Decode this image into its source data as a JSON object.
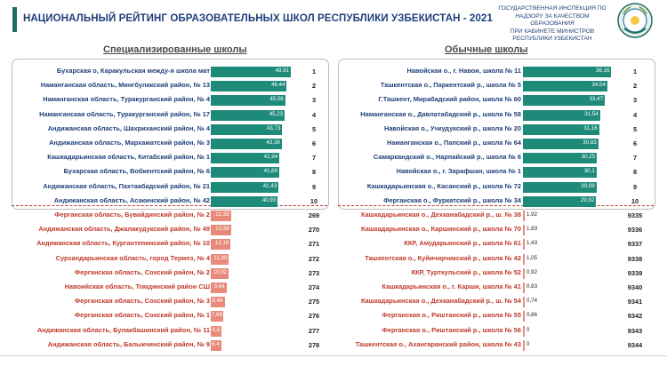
{
  "header": {
    "title": "НАЦИОНАЛЬНЫЙ РЕЙТИНГ ОБРАЗОВАТЕЛЬНЫХ ШКОЛ РЕСПУБЛИКИ УЗБЕКИСТАН - 2021",
    "agency_lines": [
      "ГОСУДАРСТВЕННАЯ ИНСПЕКЦИЯ ПО",
      "НАДЗОРУ ЗА КАЧЕСТВОМ ОБРАЗОВАНИЯ",
      "ПРИ КАБИНЕТЕ МИНИСТРОВ",
      "РЕСПУБЛИКИ УЗБЕКИСТАН"
    ]
  },
  "colors": {
    "title": "#1f3f7a",
    "accent": "#1e6f63",
    "top_bar": "#1e8a7a",
    "bottom_bar": "#e88a7a",
    "bottom_text": "#c0392b"
  },
  "left": {
    "title": "Специализированные школы",
    "max_value": 50,
    "top": [
      {
        "label": "Бухарская о, Каракульская между-я школа мат",
        "value": "48,91",
        "rank": "1"
      },
      {
        "label": "Наманганская область, Мингбулакский район, № 13",
        "value": "46,44",
        "rank": "2"
      },
      {
        "label": "Наманганская область, Туракурганский район, № 4",
        "value": "45,56",
        "rank": "3"
      },
      {
        "label": "Наманганская область, Туракурганский район, № 17",
        "value": "45,23",
        "rank": "4"
      },
      {
        "label": "Андижанская область, Шахриханский район, № 4",
        "value": "43,73",
        "rank": "5"
      },
      {
        "label": "Андижанская область, Мархаматский район, № 3",
        "value": "43,39",
        "rank": "6"
      },
      {
        "label": "Кашкадарьинская область, Китабский район, № 1",
        "value": "41,94",
        "rank": "7"
      },
      {
        "label": "Бухарская область, Вобкентский район, № 6",
        "value": "41,89",
        "rank": "8"
      },
      {
        "label": "Андижанская область, Пахтаабадский район, № 21",
        "value": "41,43",
        "rank": "9"
      },
      {
        "label": "Андижанская область, Асакинский район, № 42",
        "value": "40,93",
        "rank": "10"
      }
    ],
    "bottom": [
      {
        "label": "Ферганская область, Бувайдинский район, № 2",
        "value": "12,38",
        "rank": "269"
      },
      {
        "label": "Андижанская область, Джалакудукский район, № 49",
        "value": "12,38",
        "rank": "270"
      },
      {
        "label": "Андижанская область, Кургантепинский район, № 10",
        "value": "12,16",
        "rank": "271"
      },
      {
        "label": "Сурхандарьинская область, город Термез, № 4",
        "value": "11,09",
        "rank": "272"
      },
      {
        "label": "Ферганская область, Сохский район, № 2",
        "value": "10,92",
        "rank": "273"
      },
      {
        "label": "Навоийская область, Томдинский район СШ",
        "value": "9,64",
        "rank": "274"
      },
      {
        "label": "Ферганская область, Сохский район, № 3",
        "value": "8,46",
        "rank": "275"
      },
      {
        "label": "Ферганская область, Сохский район, № 1",
        "value": "7,66",
        "rank": "276"
      },
      {
        "label": "Андижанская область, Булакбашинский район, № 11",
        "value": "6,6",
        "rank": "277"
      },
      {
        "label": "Андижанская область, Балыкчинский район, № 9",
        "value": "6,4",
        "rank": "278"
      }
    ]
  },
  "right": {
    "title": "Обычные школы",
    "max_value": 40,
    "top": [
      {
        "label": "Навойская о., г. Навои, школа № 11",
        "value": "36,16",
        "rank": "1"
      },
      {
        "label": "Ташкентская о., Паркентский р., школа № 5",
        "value": "34,54",
        "rank": "2"
      },
      {
        "label": "Г.Ташкент, Мирабадский район, школа № 60",
        "value": "33,47",
        "rank": "3"
      },
      {
        "label": "Наманганская о., Давлатабадский р., школа № 58",
        "value": "31,54",
        "rank": "4"
      },
      {
        "label": "Навойская о., Учкудукский р., школа № 20",
        "value": "31,16",
        "rank": "5"
      },
      {
        "label": "Наманганская о., Папский р., школа № 64",
        "value": "30,83",
        "rank": "6"
      },
      {
        "label": "Самаркандский о., Нарпайский р., школа № 6",
        "value": "30,25",
        "rank": "7"
      },
      {
        "label": "Навойская о., г. Зарафшан, школа № 1",
        "value": "30,1",
        "rank": "8"
      },
      {
        "label": "Кашкадарьинская о., Касанский р., школа № 72",
        "value": "30,09",
        "rank": "9"
      },
      {
        "label": "Ферганская о., Фуркатский р., школа № 34",
        "value": "29,92",
        "rank": "10"
      }
    ],
    "bottom": [
      {
        "label": "Кашкадарьинская о., Дехканабадский р., ш. № 38",
        "value": "1,92",
        "rank": "9335"
      },
      {
        "label": "Кашкадарьинская о., Каршинский р., школа № 70",
        "value": "1,83",
        "rank": "9336"
      },
      {
        "label": "ККР, Амударьинский р., школа № 61",
        "value": "1,43",
        "rank": "9337"
      },
      {
        "label": "Ташкентская о., Куйичирчикский р., школа № 42",
        "value": "1,05",
        "rank": "9338"
      },
      {
        "label": "ККР, Турткульский р., школа № 52",
        "value": "0,92",
        "rank": "9339"
      },
      {
        "label": "Кашкадарьинская о., г. Карши, школа № 41",
        "value": "0,83",
        "rank": "9340"
      },
      {
        "label": "Кашкадарьинская о., Дехканабадский р., ш. № 54",
        "value": "0,74",
        "rank": "9341"
      },
      {
        "label": "Ферганская о., Риштанский р., школа № 55",
        "value": "0,66",
        "rank": "9342"
      },
      {
        "label": "Ферганская о., Риштанский р., школа № 56",
        "value": "0",
        "rank": "9343"
      },
      {
        "label": "Ташкентская о., Ахангаранский район, школа № 43",
        "value": "0",
        "rank": "9344"
      }
    ]
  }
}
